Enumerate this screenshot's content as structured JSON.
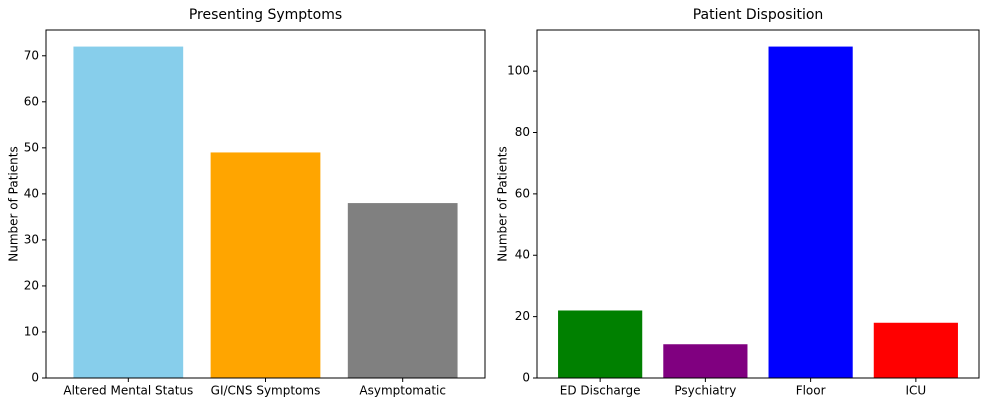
{
  "chart_data": [
    {
      "type": "bar",
      "title": "Presenting Symptoms",
      "y_label": "Number of Patients",
      "categories": [
        "Altered Mental Status",
        "GI/CNS Symptoms",
        "Asymptomatic"
      ],
      "values": [
        72,
        49,
        38
      ],
      "colors": [
        "#87ceeb",
        "#ffa500",
        "#808080"
      ],
      "ylim": [
        0,
        75.6
      ],
      "yticks": [
        0,
        10,
        20,
        30,
        40,
        50,
        60,
        70
      ]
    },
    {
      "type": "bar",
      "title": "Patient Disposition",
      "y_label": "Number of Patients",
      "categories": [
        "ED Discharge",
        "Psychiatry",
        "Floor",
        "ICU"
      ],
      "values": [
        22,
        11,
        108,
        18
      ],
      "colors": [
        "#008000",
        "#800080",
        "#0000ff",
        "#ff0000"
      ],
      "ylim": [
        0,
        113.4
      ],
      "yticks": [
        0,
        20,
        40,
        60,
        80,
        100
      ]
    }
  ]
}
